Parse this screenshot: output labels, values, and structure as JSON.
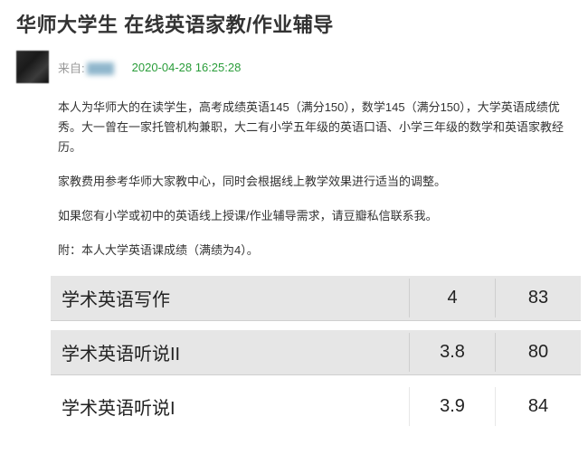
{
  "post": {
    "title": "华师大学生 在线英语家教/作业辅导",
    "from_label": "来自:",
    "timestamp": "2020-04-28 16:25:28",
    "paragraphs": [
      "本人为华师大的在读学生，高考成绩英语145（满分150），数学145（满分150），大学英语成绩优秀。大一曾在一家托管机构兼职，大二有小学五年级的英语口语、小学三年级的数学和英语家教经历。",
      "家教费用参考华师大家教中心，同时会根据线上教学效果进行适当的调整。",
      "如果您有小学或初中的英语线上授课/作业辅导需求，请豆瓣私信联系我。",
      "附：本人大学英语课成绩（满绩为4）。"
    ]
  },
  "grades": {
    "columns": [
      "course",
      "gpa",
      "score"
    ],
    "row_bg_gray": "#e6e6e6",
    "row_bg_white": "#ffffff",
    "border_color": "#cfcfcf",
    "font_size": 20,
    "rows": [
      {
        "course": "学术英语写作",
        "gpa": "4",
        "score": "83",
        "bg": "gray"
      },
      {
        "course": "学术英语听说II",
        "gpa": "3.8",
        "score": "80",
        "bg": "gray"
      },
      {
        "course": "学术英语听说I",
        "gpa": "3.9",
        "score": "84",
        "bg": "white"
      }
    ]
  },
  "colors": {
    "title": "#333333",
    "timestamp": "#2a9d3a",
    "body_text": "#333333",
    "muted": "#999999",
    "page_bg": "#ffffff"
  }
}
